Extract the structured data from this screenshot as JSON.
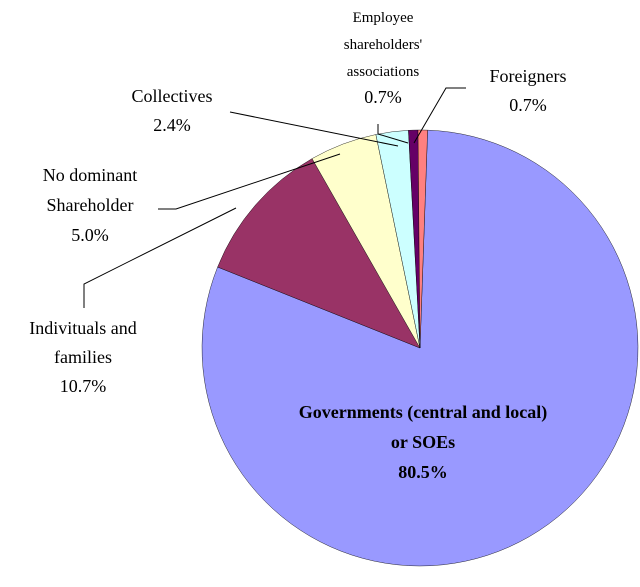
{
  "chart_data": {
    "type": "pie",
    "start_angle_deg": 0,
    "slices": [
      {
        "label_lines": [
          "Governments (central and local)",
          "or SOEs"
        ],
        "value_label": "80.5%",
        "value": 80.5,
        "color": "#9999FF"
      },
      {
        "label_lines": [
          "Indivituals and",
          "families"
        ],
        "value_label": "10.7%",
        "value": 10.7,
        "color": "#993366"
      },
      {
        "label_lines": [
          "No dominant",
          "Shareholder"
        ],
        "value_label": "5.0%",
        "value": 5.0,
        "color": "#FFFFCC"
      },
      {
        "label_lines": [
          "Collectives"
        ],
        "value_label": "2.4%",
        "value": 2.4,
        "color": "#CCFFFF"
      },
      {
        "label_lines": [
          "Employee",
          "shareholders'",
          "associations"
        ],
        "value_label": "0.7%",
        "value": 0.7,
        "color": "#660066"
      },
      {
        "label_lines": [
          "Foreigners"
        ],
        "value_label": "0.7%",
        "value": 0.7,
        "color": "#FF8080"
      }
    ]
  }
}
